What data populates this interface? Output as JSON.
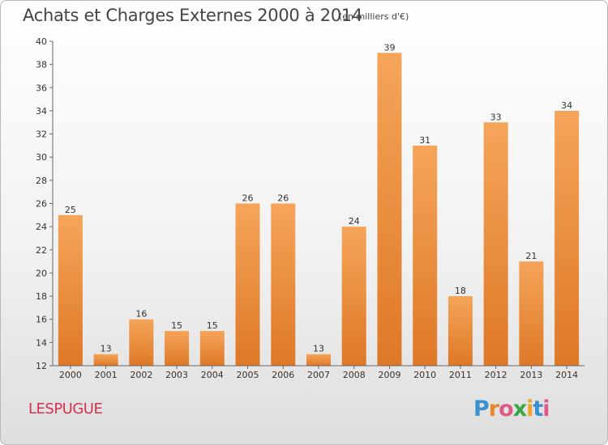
{
  "title": "Achats et Charges Externes 2000 à 2014",
  "subtitle": "(en milliers d'€)",
  "commune": "LESPUGUE",
  "logo": {
    "letters": [
      "P",
      "r",
      "o",
      "x",
      "i",
      "t",
      "i"
    ],
    "colors": [
      "#3a8fd0",
      "#e8862a",
      "#e05a86",
      "#3aa545",
      "#f0a22a",
      "#3a8fd0",
      "#e05a86"
    ]
  },
  "colors": {
    "bar_light": "#f5a55a",
    "bar_dark": "#de7827",
    "axis": "#666666",
    "grid": "#d8d8d8",
    "title": "#444444",
    "commune": "#d5324f"
  },
  "chart_data": {
    "type": "bar",
    "title": "Achats et Charges Externes 2000 à 2014",
    "subtitle": "(en milliers d'€)",
    "xlabel": "",
    "ylabel": "",
    "categories": [
      "2000",
      "2001",
      "2002",
      "2003",
      "2004",
      "2005",
      "2006",
      "2007",
      "2008",
      "2009",
      "2010",
      "2011",
      "2012",
      "2013",
      "2014"
    ],
    "values": [
      25,
      13,
      16,
      15,
      15,
      26,
      26,
      13,
      24,
      39,
      31,
      18,
      33,
      21,
      34
    ],
    "ylim": [
      12,
      40
    ],
    "yticks": [
      12,
      14,
      16,
      18,
      20,
      22,
      24,
      26,
      28,
      30,
      32,
      34,
      36,
      38,
      40
    ],
    "data_labels": true,
    "grid": false,
    "legend": "none"
  }
}
